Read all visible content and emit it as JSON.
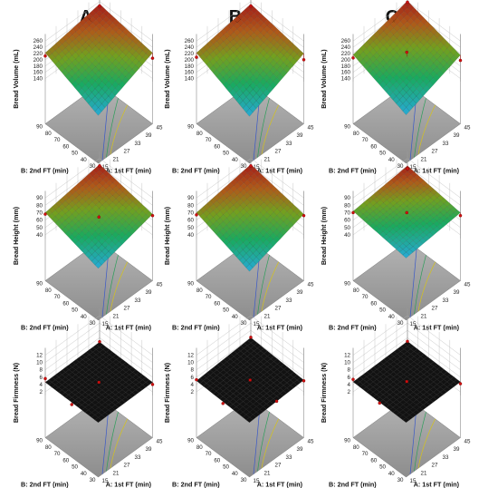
{
  "panel_labels": [
    "A",
    "B",
    "C"
  ],
  "chart_data": [
    {
      "type": "surface",
      "panel": "A",
      "zlabel": "Bread Volume (mL)",
      "xlabel": "A: 1st FT (min)",
      "ylabel": "B: 2nd FT (min)",
      "zticks": [
        "140",
        "160",
        "180",
        "200",
        "220",
        "240",
        "260"
      ],
      "xticks": [
        "15",
        "21",
        "27",
        "33",
        "39",
        "45"
      ],
      "yticks": [
        "30",
        "40",
        "50",
        "60",
        "70",
        "80",
        "90"
      ],
      "zlim": [
        130,
        265
      ],
      "xlim": [
        15,
        45
      ],
      "ylim": [
        30,
        90
      ],
      "surface_corners": {
        "x15_y30": 148,
        "x45_y30": 222,
        "x15_y90": 222,
        "x45_y90": 252
      },
      "design_points": [
        {
          "x": 45,
          "y": 90,
          "z": 246
        },
        {
          "x": 45,
          "y": 30,
          "z": 205
        },
        {
          "x": 15,
          "y": 90,
          "z": 212
        }
      ]
    },
    {
      "type": "surface",
      "panel": "B",
      "zlabel": "Bread Volume (mL)",
      "xlabel": "A: 1st FT (min)",
      "ylabel": "B: 2nd FT (min)",
      "zticks": [
        "140",
        "160",
        "180",
        "200",
        "220",
        "240",
        "260"
      ],
      "xticks": [
        "15",
        "21",
        "27",
        "33",
        "39",
        "45"
      ],
      "yticks": [
        "30",
        "40",
        "50",
        "60",
        "70",
        "80",
        "90"
      ],
      "zlim": [
        130,
        265
      ],
      "xlim": [
        15,
        45
      ],
      "ylim": [
        30,
        90
      ],
      "surface_corners": {
        "x15_y30": 145,
        "x45_y30": 220,
        "x15_y90": 222,
        "x45_y90": 252
      },
      "design_points": [
        {
          "x": 45,
          "y": 90,
          "z": 246
        },
        {
          "x": 45,
          "y": 30,
          "z": 200
        },
        {
          "x": 15,
          "y": 90,
          "z": 208
        }
      ]
    },
    {
      "type": "surface",
      "panel": "C",
      "zlabel": "Bread Volume (mL)",
      "xlabel": "A: 1st FT (min)",
      "ylabel": "B: 2nd FT (min)",
      "zticks": [
        "140",
        "160",
        "180",
        "200",
        "220",
        "240",
        "260"
      ],
      "xticks": [
        "15",
        "21",
        "27",
        "33",
        "39",
        "45"
      ],
      "yticks": [
        "30",
        "40",
        "50",
        "60",
        "70",
        "80",
        "90"
      ],
      "zlim": [
        130,
        265
      ],
      "xlim": [
        15,
        45
      ],
      "ylim": [
        30,
        90
      ],
      "surface_corners": {
        "x15_y30": 150,
        "x45_y30": 215,
        "x15_y90": 216,
        "x45_y90": 262
      },
      "design_points": [
        {
          "x": 45,
          "y": 90,
          "z": 258
        },
        {
          "x": 45,
          "y": 30,
          "z": 198
        },
        {
          "x": 15,
          "y": 90,
          "z": 206
        },
        {
          "x": 30,
          "y": 60,
          "z": 224
        }
      ]
    },
    {
      "type": "surface",
      "panel": "A",
      "zlabel": "Bread Height (mm)",
      "xlabel": "A: 1st FT (min)",
      "ylabel": "B: 2nd FT (min)",
      "zticks": [
        "40",
        "50",
        "60",
        "70",
        "80",
        "90"
      ],
      "xticks": [
        "15",
        "21",
        "27",
        "33",
        "39",
        "45"
      ],
      "yticks": [
        "30",
        "40",
        "50",
        "60",
        "70",
        "80",
        "90"
      ],
      "zlim": [
        35,
        92
      ],
      "xlim": [
        15,
        45
      ],
      "ylim": [
        30,
        90
      ],
      "surface_corners": {
        "x15_y30": 48,
        "x45_y30": 68,
        "x15_y90": 70,
        "x45_y90": 82
      },
      "design_points": [
        {
          "x": 45,
          "y": 90,
          "z": 80
        },
        {
          "x": 45,
          "y": 30,
          "z": 66
        },
        {
          "x": 15,
          "y": 90,
          "z": 68
        },
        {
          "x": 30,
          "y": 60,
          "z": 64
        }
      ]
    },
    {
      "type": "surface",
      "panel": "B",
      "zlabel": "Bread Height (mm)",
      "xlabel": "A: 1st FT (min)",
      "ylabel": "B: 2nd FT (min)",
      "zticks": [
        "40",
        "50",
        "60",
        "70",
        "80",
        "90"
      ],
      "xticks": [
        "15",
        "21",
        "27",
        "33",
        "39",
        "45"
      ],
      "yticks": [
        "30",
        "40",
        "50",
        "60",
        "70",
        "80",
        "90"
      ],
      "zlim": [
        35,
        92
      ],
      "xlim": [
        15,
        45
      ],
      "ylim": [
        30,
        90
      ],
      "surface_corners": {
        "x15_y30": 44,
        "x45_y30": 68,
        "x15_y90": 70,
        "x45_y90": 82
      },
      "design_points": [
        {
          "x": 45,
          "y": 90,
          "z": 80
        },
        {
          "x": 45,
          "y": 30,
          "z": 66
        },
        {
          "x": 15,
          "y": 90,
          "z": 67
        }
      ]
    },
    {
      "type": "surface",
      "panel": "C",
      "zlabel": "Bread Height (mm)",
      "xlabel": "A: 1st FT (min)",
      "ylabel": "B: 2nd FT (min)",
      "zticks": [
        "40",
        "50",
        "60",
        "70",
        "80",
        "90"
      ],
      "xticks": [
        "15",
        "21",
        "27",
        "33",
        "39",
        "45"
      ],
      "yticks": [
        "30",
        "40",
        "50",
        "60",
        "70",
        "80",
        "90"
      ],
      "zlim": [
        35,
        92
      ],
      "xlim": [
        15,
        45
      ],
      "ylim": [
        30,
        90
      ],
      "surface_corners": {
        "x15_y30": 62,
        "x45_y30": 70,
        "x15_y90": 72,
        "x45_y90": 80
      },
      "design_points": [
        {
          "x": 45,
          "y": 90,
          "z": 76
        },
        {
          "x": 45,
          "y": 30,
          "z": 66
        },
        {
          "x": 15,
          "y": 90,
          "z": 70
        },
        {
          "x": 30,
          "y": 60,
          "z": 70
        }
      ]
    },
    {
      "type": "surface",
      "panel": "A",
      "zlabel": "Bread Firmness (N)",
      "xlabel": "A: 1st FT (min)",
      "ylabel": "B: 2nd FT (min)",
      "zticks": [
        "2",
        "4",
        "6",
        "8",
        "10",
        "12"
      ],
      "xticks": [
        "15",
        "21",
        "27",
        "33",
        "39",
        "45"
      ],
      "yticks": [
        "30",
        "40",
        "50",
        "60",
        "70",
        "80",
        "90"
      ],
      "zlim": [
        1,
        12.5
      ],
      "xlim": [
        15,
        45
      ],
      "ylim": [
        30,
        90
      ],
      "surface_corners": {
        "x15_y30": 4.4,
        "x45_y30": 4.6,
        "x15_y90": 4.6,
        "x45_y90": 4.8
      },
      "design_points": [
        {
          "x": 15,
          "y": 90,
          "z": 5.6
        },
        {
          "x": 15,
          "y": 60,
          "z": 3.9
        },
        {
          "x": 30,
          "y": 60,
          "z": 4.6
        },
        {
          "x": 45,
          "y": 30,
          "z": 4.0
        },
        {
          "x": 45,
          "y": 90,
          "z": 4.9
        }
      ]
    },
    {
      "type": "surface",
      "panel": "B",
      "zlabel": "Bread Firmness (N)",
      "xlabel": "A: 1st FT (min)",
      "ylabel": "B: 2nd FT (min)",
      "zticks": [
        "2",
        "4",
        "6",
        "8",
        "10",
        "12"
      ],
      "xticks": [
        "15",
        "21",
        "27",
        "33",
        "39",
        "45"
      ],
      "yticks": [
        "30",
        "40",
        "50",
        "60",
        "70",
        "80",
        "90"
      ],
      "zlim": [
        1,
        12.5
      ],
      "xlim": [
        15,
        45
      ],
      "ylim": [
        30,
        90
      ],
      "surface_corners": {
        "x15_y30": 4.4,
        "x45_y30": 5.2,
        "x15_y90": 5.0,
        "x45_y90": 6.0
      },
      "design_points": [
        {
          "x": 15,
          "y": 90,
          "z": 5.3
        },
        {
          "x": 15,
          "y": 60,
          "z": 4.2
        },
        {
          "x": 30,
          "y": 60,
          "z": 5.2
        },
        {
          "x": 45,
          "y": 30,
          "z": 5.0
        },
        {
          "x": 45,
          "y": 90,
          "z": 6.1
        },
        {
          "x": 30,
          "y": 30,
          "z": 4.8
        }
      ]
    },
    {
      "type": "surface",
      "panel": "C",
      "zlabel": "Bread Firmness (N)",
      "xlabel": "A: 1st FT (min)",
      "ylabel": "B: 2nd FT (min)",
      "zticks": [
        "2",
        "4",
        "6",
        "8",
        "10",
        "12"
      ],
      "xticks": [
        "15",
        "21",
        "27",
        "33",
        "39",
        "45"
      ],
      "yticks": [
        "30",
        "40",
        "50",
        "60",
        "70",
        "80",
        "90"
      ],
      "zlim": [
        1,
        12.5
      ],
      "xlim": [
        15,
        45
      ],
      "ylim": [
        30,
        90
      ],
      "surface_corners": {
        "x15_y30": 4.4,
        "x45_y30": 4.7,
        "x15_y90": 4.7,
        "x45_y90": 5.0
      },
      "design_points": [
        {
          "x": 15,
          "y": 90,
          "z": 5.4
        },
        {
          "x": 15,
          "y": 60,
          "z": 4.3
        },
        {
          "x": 30,
          "y": 60,
          "z": 4.8
        },
        {
          "x": 45,
          "y": 30,
          "z": 4.2
        },
        {
          "x": 45,
          "y": 90,
          "z": 5.0
        }
      ]
    }
  ]
}
